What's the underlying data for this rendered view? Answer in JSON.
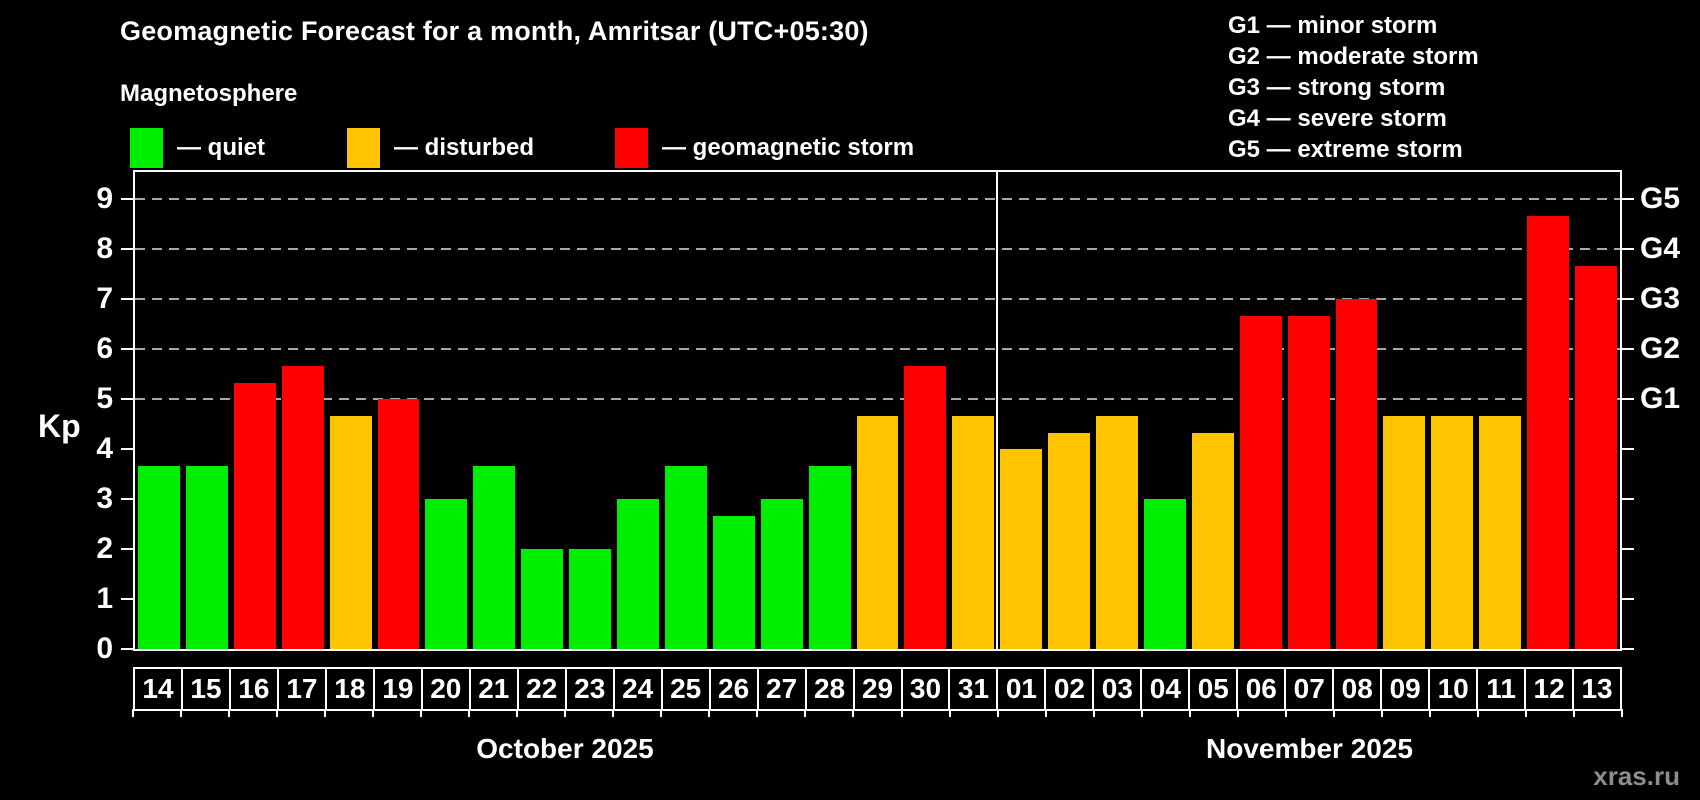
{
  "header": {
    "title": "Geomagnetic Forecast for a month, Amritsar (UTC+05:30)",
    "subtitle": "Magnetosphere",
    "legend": [
      {
        "key": "quiet",
        "label": "— quiet",
        "color": "#00ee00"
      },
      {
        "key": "disturbed",
        "label": "— disturbed",
        "color": "#ffc400"
      },
      {
        "key": "storm",
        "label": "— geomagnetic storm",
        "color": "#ff0000"
      }
    ],
    "g_scale_legend": [
      "G1 — minor storm",
      "G2 — moderate storm",
      "G3 — strong storm",
      "G4 — severe storm",
      "G5 — extreme storm"
    ]
  },
  "colors": {
    "quiet": "#00ee00",
    "disturbed": "#ffc400",
    "storm": "#ff0000",
    "background": "#000000",
    "axis": "#ffffff",
    "grid": "#a8a8a8",
    "watermark": "#8d8d8d"
  },
  "chart_data": {
    "type": "bar",
    "ylabel": "Kp",
    "ylim": [
      0,
      9.6
    ],
    "y_ticks": [
      0,
      1,
      2,
      3,
      4,
      5,
      6,
      7,
      8,
      9
    ],
    "gridlines_at": [
      5,
      6,
      7,
      8,
      9
    ],
    "grid": "dashed-horizontal",
    "legend_position": "top",
    "right_axis": [
      {
        "label": "G1",
        "kp": 5
      },
      {
        "label": "G2",
        "kp": 6
      },
      {
        "label": "G3",
        "kp": 7
      },
      {
        "label": "G4",
        "kp": 8
      },
      {
        "label": "G5",
        "kp": 9
      }
    ],
    "months": [
      {
        "label": "October 2025",
        "days": [
          {
            "day": "14",
            "kp": 3.67,
            "condition": "quiet"
          },
          {
            "day": "15",
            "kp": 3.67,
            "condition": "quiet"
          },
          {
            "day": "16",
            "kp": 5.33,
            "condition": "storm"
          },
          {
            "day": "17",
            "kp": 5.67,
            "condition": "storm"
          },
          {
            "day": "18",
            "kp": 4.67,
            "condition": "disturbed"
          },
          {
            "day": "19",
            "kp": 5.0,
            "condition": "storm"
          },
          {
            "day": "20",
            "kp": 3.0,
            "condition": "quiet"
          },
          {
            "day": "21",
            "kp": 3.67,
            "condition": "quiet"
          },
          {
            "day": "22",
            "kp": 2.0,
            "condition": "quiet"
          },
          {
            "day": "23",
            "kp": 2.0,
            "condition": "quiet"
          },
          {
            "day": "24",
            "kp": 3.0,
            "condition": "quiet"
          },
          {
            "day": "25",
            "kp": 3.67,
            "condition": "quiet"
          },
          {
            "day": "26",
            "kp": 2.67,
            "condition": "quiet"
          },
          {
            "day": "27",
            "kp": 3.0,
            "condition": "quiet"
          },
          {
            "day": "28",
            "kp": 3.67,
            "condition": "quiet"
          },
          {
            "day": "29",
            "kp": 4.67,
            "condition": "disturbed"
          },
          {
            "day": "30",
            "kp": 5.67,
            "condition": "storm"
          },
          {
            "day": "31",
            "kp": 4.67,
            "condition": "disturbed"
          }
        ]
      },
      {
        "label": "November 2025",
        "days": [
          {
            "day": "01",
            "kp": 4.0,
            "condition": "disturbed"
          },
          {
            "day": "02",
            "kp": 4.33,
            "condition": "disturbed"
          },
          {
            "day": "03",
            "kp": 4.67,
            "condition": "disturbed"
          },
          {
            "day": "04",
            "kp": 3.0,
            "condition": "quiet"
          },
          {
            "day": "05",
            "kp": 4.33,
            "condition": "disturbed"
          },
          {
            "day": "06",
            "kp": 6.67,
            "condition": "storm"
          },
          {
            "day": "07",
            "kp": 6.67,
            "condition": "storm"
          },
          {
            "day": "08",
            "kp": 7.0,
            "condition": "storm"
          },
          {
            "day": "09",
            "kp": 4.67,
            "condition": "disturbed"
          },
          {
            "day": "10",
            "kp": 4.67,
            "condition": "disturbed"
          },
          {
            "day": "11",
            "kp": 4.67,
            "condition": "disturbed"
          },
          {
            "day": "12",
            "kp": 8.67,
            "condition": "storm"
          },
          {
            "day": "13",
            "kp": 7.67,
            "condition": "storm"
          }
        ]
      }
    ]
  },
  "watermark": "xras.ru"
}
